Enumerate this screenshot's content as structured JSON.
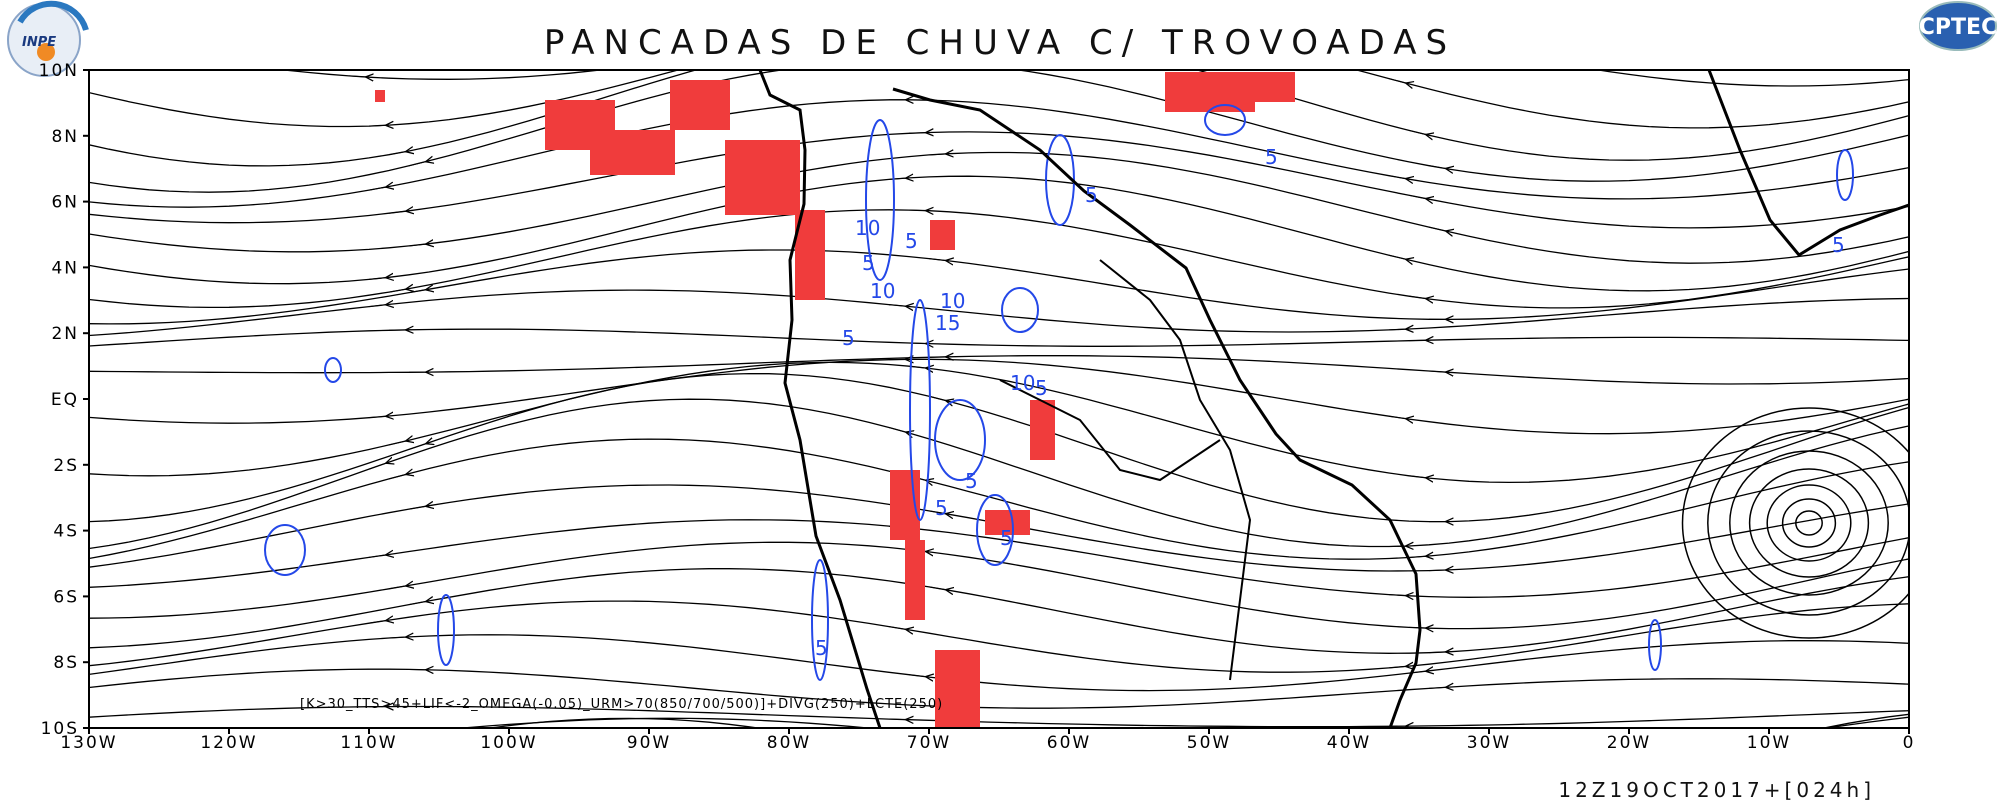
{
  "header": {
    "title": "PANCADAS DE CHUVA C/ TROVOADAS",
    "logo_left": "INPE",
    "logo_right": "CPTEC"
  },
  "map": {
    "lat_labels": [
      "10N",
      "8N",
      "6N",
      "4N",
      "2N",
      "EQ",
      "2S",
      "4S",
      "6S",
      "8S",
      "10S"
    ],
    "lon_labels": [
      "130W",
      "120W",
      "110W",
      "100W",
      "90W",
      "80W",
      "70W",
      "60W",
      "50W",
      "40W",
      "30W",
      "20W",
      "10W",
      "0"
    ],
    "formula": "[K>30_TTS>45+LIF<-2_OMEGA(-0.05)_URM>70(850/700/500)]+DIVG(250)+LCTE(250)",
    "contour_labels": [
      "5",
      "10",
      "5",
      "10",
      "10",
      "15",
      "5",
      "10",
      "5",
      "5",
      "5",
      "5",
      "5",
      "5",
      "5",
      "5"
    ]
  },
  "footer": {
    "timestamp": "12Z19OCT2017+[024h]"
  }
}
